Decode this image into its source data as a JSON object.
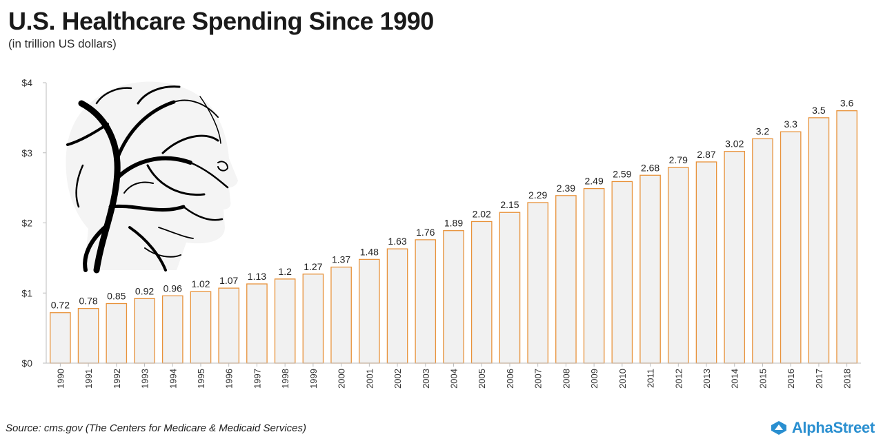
{
  "header": {
    "title": "U.S. Healthcare Spending Since 1990",
    "subtitle": "(in trillion US dollars)"
  },
  "footer": {
    "source": "Source: cms.gov (The Centers for Medicare & Medicaid Services)",
    "brand": "AlphaStreet"
  },
  "illustration": {
    "icon": "head-silhouette-neurons-icon"
  },
  "colors": {
    "bar_stroke": "#e8923a",
    "bar_fill": "#f1f1f1",
    "axis": "#bbbbbb",
    "brand": "#2a8fd0"
  },
  "chart_data": {
    "type": "bar",
    "categories": [
      "1990",
      "1991",
      "1992",
      "1993",
      "1994",
      "1995",
      "1996",
      "1997",
      "1998",
      "1999",
      "2000",
      "2001",
      "2002",
      "2003",
      "2004",
      "2005",
      "2006",
      "2007",
      "2008",
      "2009",
      "2010",
      "2011",
      "2012",
      "2013",
      "2014",
      "2015",
      "2016",
      "2017",
      "2018"
    ],
    "values": [
      0.72,
      0.78,
      0.85,
      0.92,
      0.96,
      1.02,
      1.07,
      1.13,
      1.2,
      1.27,
      1.37,
      1.48,
      1.63,
      1.76,
      1.89,
      2.02,
      2.15,
      2.29,
      2.39,
      2.49,
      2.59,
      2.68,
      2.79,
      2.87,
      3.02,
      3.2,
      3.3,
      3.5,
      3.6
    ],
    "data_labels": [
      "0.72",
      "0.78",
      "0.85",
      "0.92",
      "0.96",
      "1.02",
      "1.07",
      "1.13",
      "1.2",
      "1.27",
      "1.37",
      "1.48",
      "1.63",
      "1.76",
      "1.89",
      "2.02",
      "2.15",
      "2.29",
      "2.39",
      "2.49",
      "2.59",
      "2.68",
      "2.79",
      "2.87",
      "3.02",
      "3.2",
      "3.3",
      "3.5",
      "3.6"
    ],
    "yticks": [
      0,
      1,
      2,
      3,
      4
    ],
    "ytick_labels": [
      "$0",
      "$1",
      "$2",
      "$3",
      "$4"
    ],
    "ylim": [
      0,
      4
    ],
    "title": "U.S. Healthcare Spending Since 1990",
    "subtitle": "(in trillion US dollars)",
    "grid": false,
    "legend": "none"
  }
}
